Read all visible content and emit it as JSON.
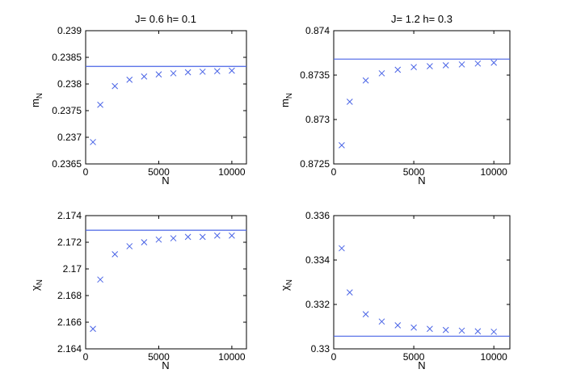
{
  "chart_data": [
    {
      "type": "scatter",
      "title": "J= 0.6 h= 0.1",
      "xlabel": "N",
      "ylabel": {
        "base": "m",
        "sub": "N"
      },
      "xlim": [
        0,
        11000
      ],
      "ylim": [
        0.2365,
        0.239
      ],
      "xticks": [
        0,
        5000,
        10000
      ],
      "xtick_labels": [
        "0",
        "5000",
        "10000"
      ],
      "yticks": [
        0.2365,
        0.237,
        0.2375,
        0.238,
        0.2385,
        0.239
      ],
      "ytick_labels": [
        "0.2365",
        "0.237",
        "0.2375",
        "0.238",
        "0.2385",
        "0.239"
      ],
      "reference_line": 0.23833,
      "series": [
        {
          "name": "m_N",
          "marker": "x",
          "x": [
            500,
            1000,
            2000,
            3000,
            4000,
            5000,
            6000,
            7000,
            8000,
            9000,
            10000
          ],
          "y": [
            0.23691,
            0.23761,
            0.23796,
            0.23808,
            0.23814,
            0.23818,
            0.2382,
            0.23822,
            0.23823,
            0.23824,
            0.23825
          ]
        }
      ]
    },
    {
      "type": "scatter",
      "title": "J= 1.2 h= 0.3",
      "xlabel": "N",
      "ylabel": {
        "base": "m",
        "sub": "N"
      },
      "xlim": [
        0,
        11000
      ],
      "ylim": [
        0.8725,
        0.874
      ],
      "xticks": [
        0,
        5000,
        10000
      ],
      "xtick_labels": [
        "0",
        "5000",
        "10000"
      ],
      "yticks": [
        0.8725,
        0.873,
        0.8735,
        0.874
      ],
      "ytick_labels": [
        "0.8725",
        "0.873",
        "0.8735",
        "0.874"
      ],
      "reference_line": 0.87368,
      "series": [
        {
          "name": "m_N",
          "marker": "x",
          "x": [
            500,
            1000,
            2000,
            3000,
            4000,
            5000,
            6000,
            7000,
            8000,
            9000,
            10000
          ],
          "y": [
            0.87271,
            0.8732,
            0.87344,
            0.87352,
            0.87356,
            0.87359,
            0.8736,
            0.87361,
            0.87362,
            0.87363,
            0.87364
          ]
        }
      ]
    },
    {
      "type": "scatter",
      "title": "",
      "xlabel": "N",
      "ylabel": {
        "base": "χ",
        "sub": "N"
      },
      "xlim": [
        0,
        11000
      ],
      "ylim": [
        2.164,
        2.174
      ],
      "xticks": [
        0,
        5000,
        10000
      ],
      "xtick_labels": [
        "0",
        "5000",
        "10000"
      ],
      "yticks": [
        2.164,
        2.166,
        2.168,
        2.17,
        2.172,
        2.174
      ],
      "ytick_labels": [
        "2.164",
        "2.166",
        "2.168",
        "2.17",
        "2.172",
        "2.174"
      ],
      "reference_line": 2.1729,
      "series": [
        {
          "name": "χ_N",
          "marker": "x",
          "x": [
            500,
            1000,
            2000,
            3000,
            4000,
            5000,
            6000,
            7000,
            8000,
            9000,
            10000
          ],
          "y": [
            2.1655,
            2.1692,
            2.1711,
            2.1717,
            2.172,
            2.1722,
            2.1723,
            2.1724,
            2.1724,
            2.1725,
            2.1725
          ]
        }
      ]
    },
    {
      "type": "scatter",
      "title": "",
      "xlabel": "N",
      "ylabel": {
        "base": "χ",
        "sub": "N"
      },
      "xlim": [
        0,
        11000
      ],
      "ylim": [
        0.33,
        0.336
      ],
      "xticks": [
        0,
        5000,
        10000
      ],
      "xtick_labels": [
        "0",
        "5000",
        "10000"
      ],
      "yticks": [
        0.33,
        0.332,
        0.334,
        0.336
      ],
      "ytick_labels": [
        "0.33",
        "0.332",
        "0.334",
        "0.336"
      ],
      "reference_line": 0.33057,
      "series": [
        {
          "name": "χ_N",
          "marker": "x",
          "x": [
            500,
            1000,
            2000,
            3000,
            4000,
            5000,
            6000,
            7000,
            8000,
            9000,
            10000
          ],
          "y": [
            0.33453,
            0.33254,
            0.33156,
            0.33123,
            0.33106,
            0.33096,
            0.3309,
            0.33085,
            0.33082,
            0.33079,
            0.33077
          ]
        }
      ]
    }
  ]
}
